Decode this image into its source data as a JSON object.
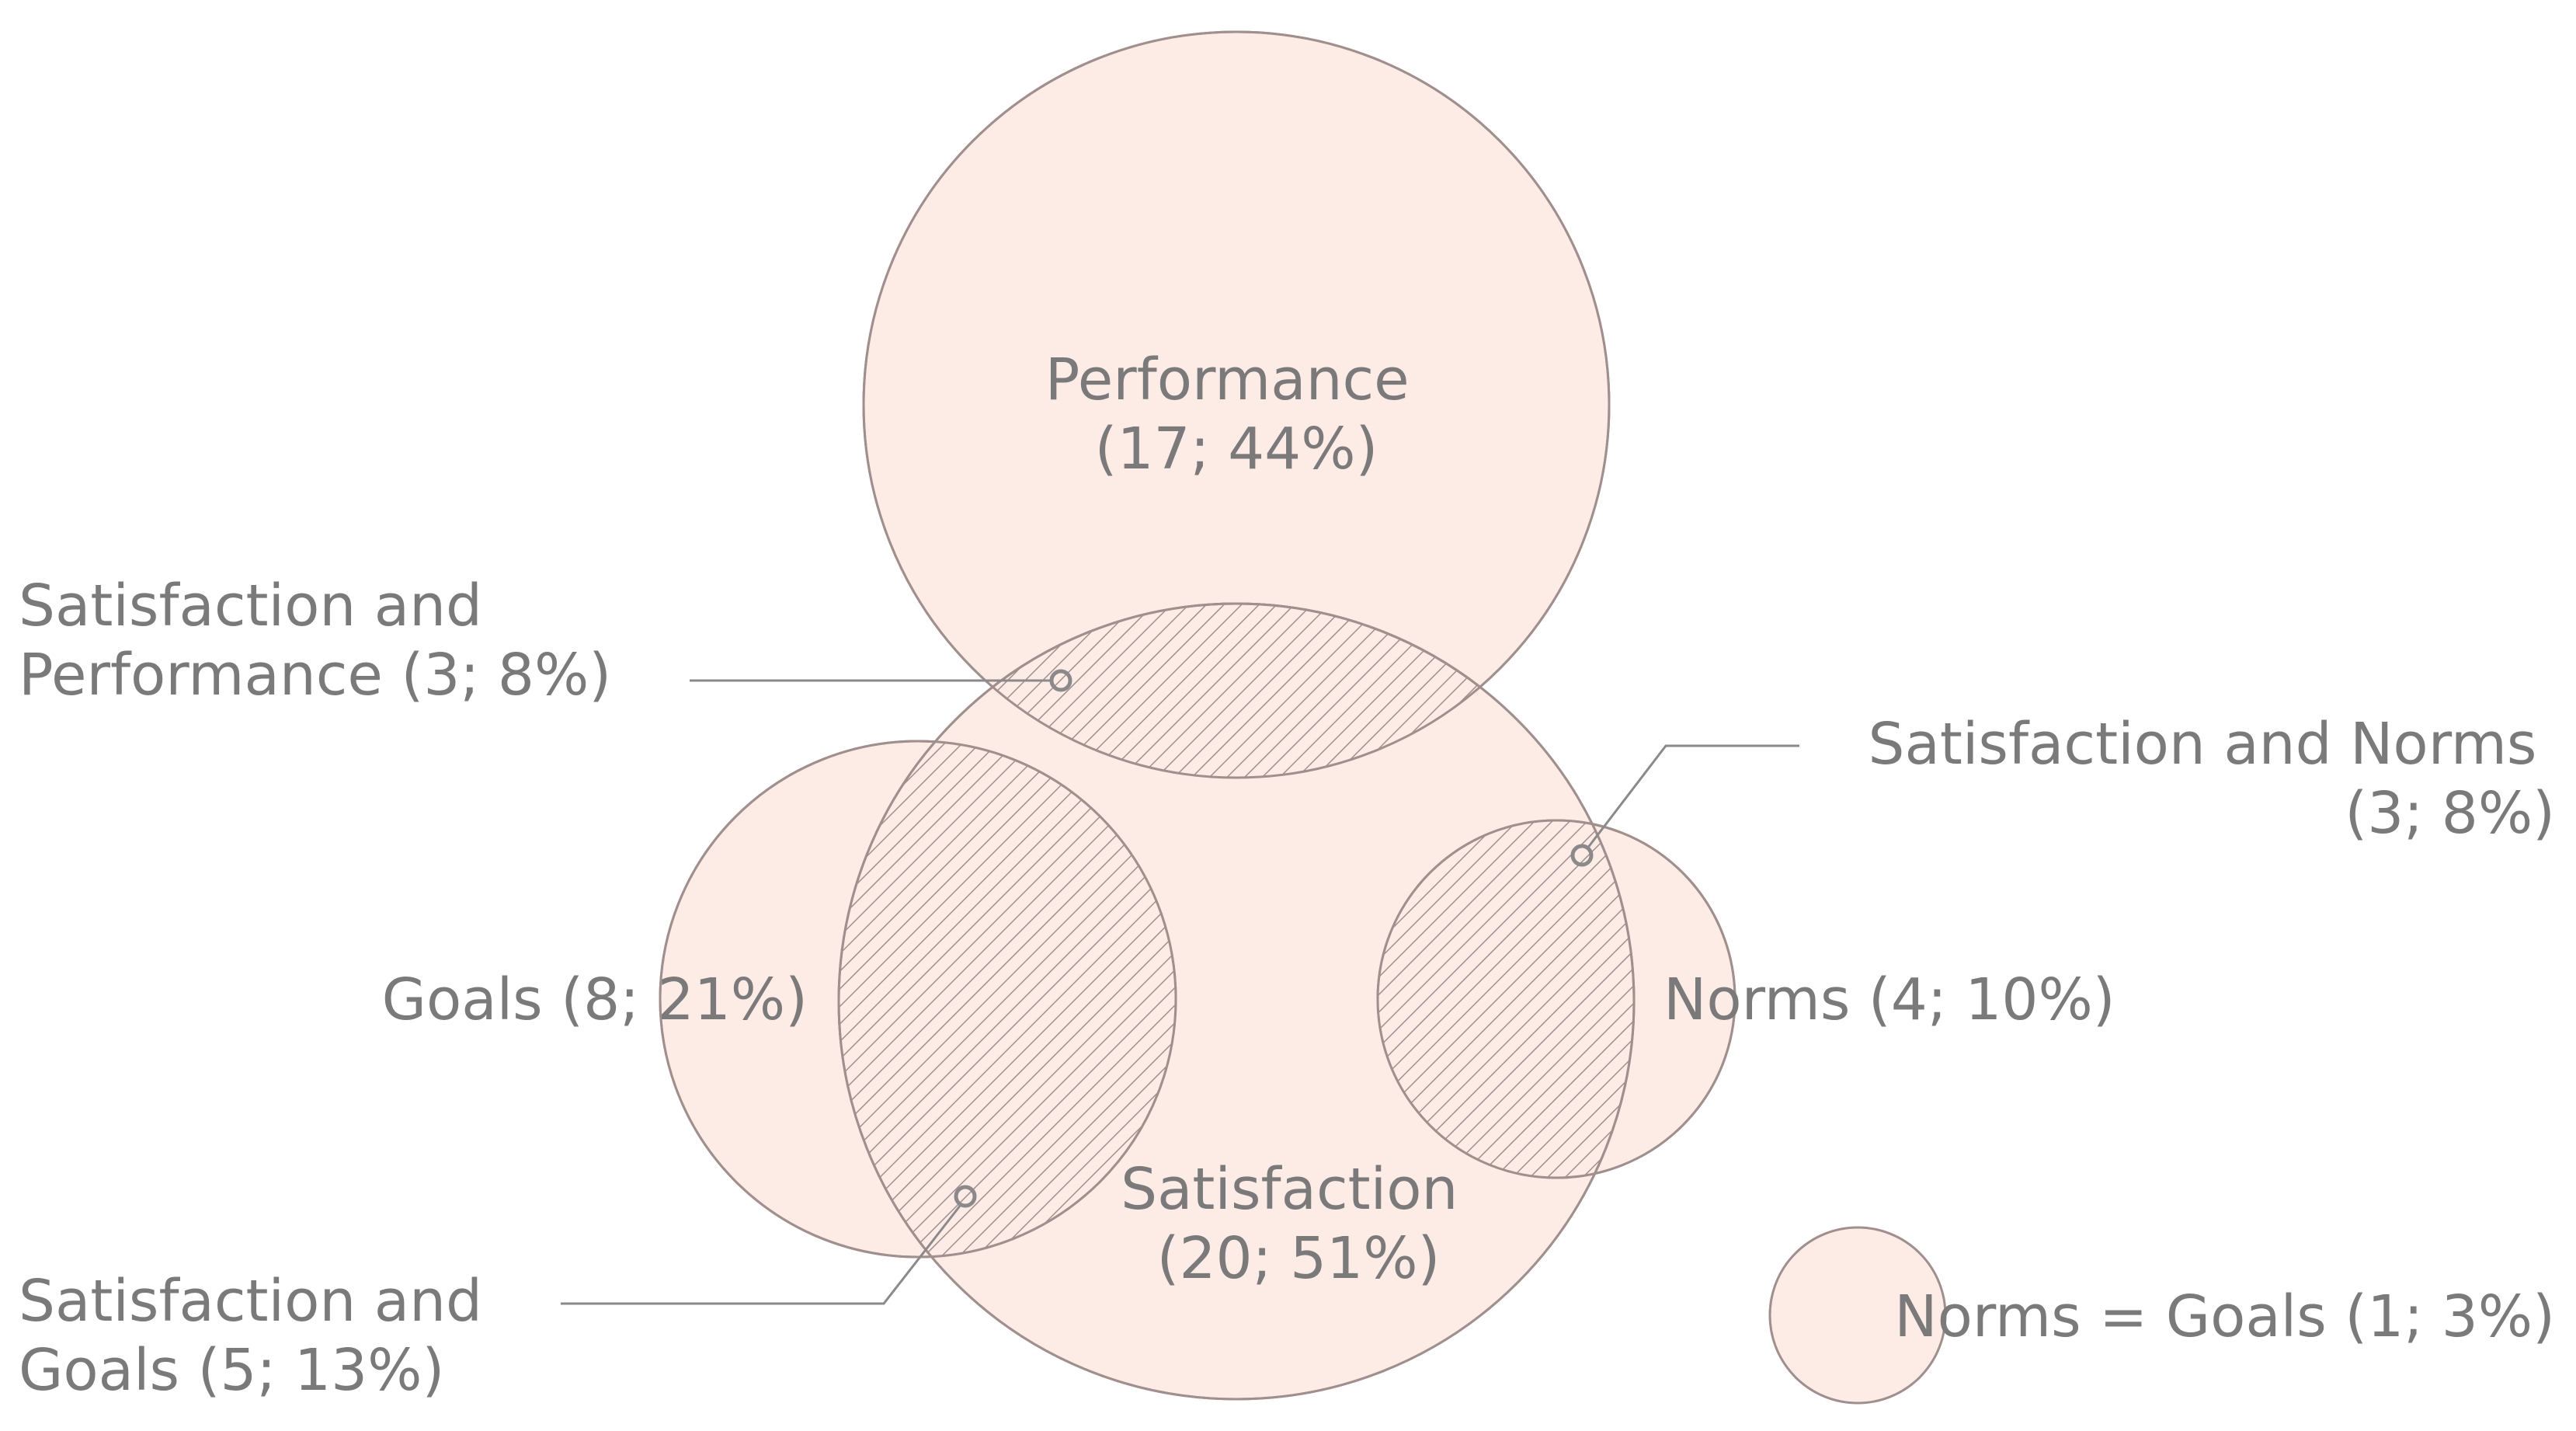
{
  "diagram": {
    "colors": {
      "fill": "#fdebe6",
      "stroke": "#a08f8c",
      "text": "#7a7a7a",
      "leader": "#8a8a8a",
      "hatch": "#a08f8c"
    },
    "sets": {
      "performance": {
        "line1": "Performance",
        "line2": "(17; 44%)"
      },
      "satisfaction": {
        "line1": "Satisfaction",
        "line2": "(20; 51%)"
      },
      "goals": {
        "label": "Goals (8; 21%)"
      },
      "norms": {
        "label": "Norms (4; 10%)"
      },
      "norms_goals": {
        "label": "Norms = Goals (1; 3%)"
      }
    },
    "overlaps": {
      "satisfaction_performance": {
        "line1": "Satisfaction and",
        "line2": "Performance (3; 8%)"
      },
      "satisfaction_norms": {
        "line1": "Satisfaction and Norms",
        "line2": "(3; 8%)"
      },
      "satisfaction_goals": {
        "line1": "Satisfaction and",
        "line2": "Goals (5; 13%)"
      }
    }
  }
}
